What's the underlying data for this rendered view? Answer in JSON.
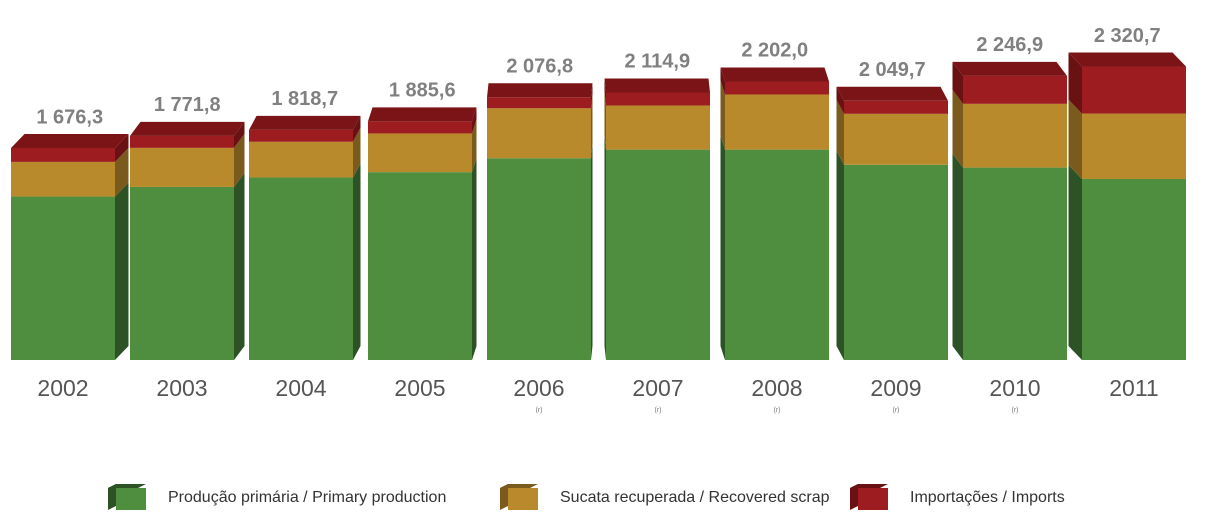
{
  "chart_data": {
    "type": "bar3d_stacked",
    "categories": [
      "2002",
      "2003",
      "2004",
      "2005",
      "2006",
      "2007",
      "2008",
      "2009",
      "2010",
      "2011"
    ],
    "notes": [
      null,
      null,
      null,
      null,
      "(r)",
      "(r)",
      "(r)",
      "(r)",
      "(r)",
      null
    ],
    "series": [
      {
        "name": "Produção primária / Primary production",
        "color": "#4f8d3f",
        "side": "#2d5226",
        "values": [
          1292,
          1368,
          1443,
          1485,
          1595,
          1663,
          1663,
          1543,
          1521,
          1431
        ]
      },
      {
        "name": "Sucata recuperada / Recovered scrap",
        "color": "#b98a2c",
        "side": "#7a5b1d",
        "values": [
          274,
          309,
          282,
          306,
          395,
          349,
          436,
          403,
          504,
          517
        ]
      },
      {
        "name": "Importações / Imports",
        "color": "#9c1c1f",
        "side": "#6a1113",
        "values": [
          110,
          95,
          94,
          95,
          87,
          103,
          103,
          103,
          221,
          372
        ]
      }
    ],
    "totals": {
      "values": [
        1676.3,
        1771.8,
        1818.7,
        1885.6,
        2076.8,
        2114.9,
        2202.0,
        2049.7,
        2246.9,
        2320.7
      ],
      "value_labels": [
        "1 676,3",
        "1 771,8",
        "1 818,7",
        "1 885,6",
        "2 076,8",
        "2 114,9",
        "2 202,0",
        "2 049,7",
        "2 246,9",
        "2 320,7"
      ]
    },
    "top_color": "#7a1416"
  }
}
